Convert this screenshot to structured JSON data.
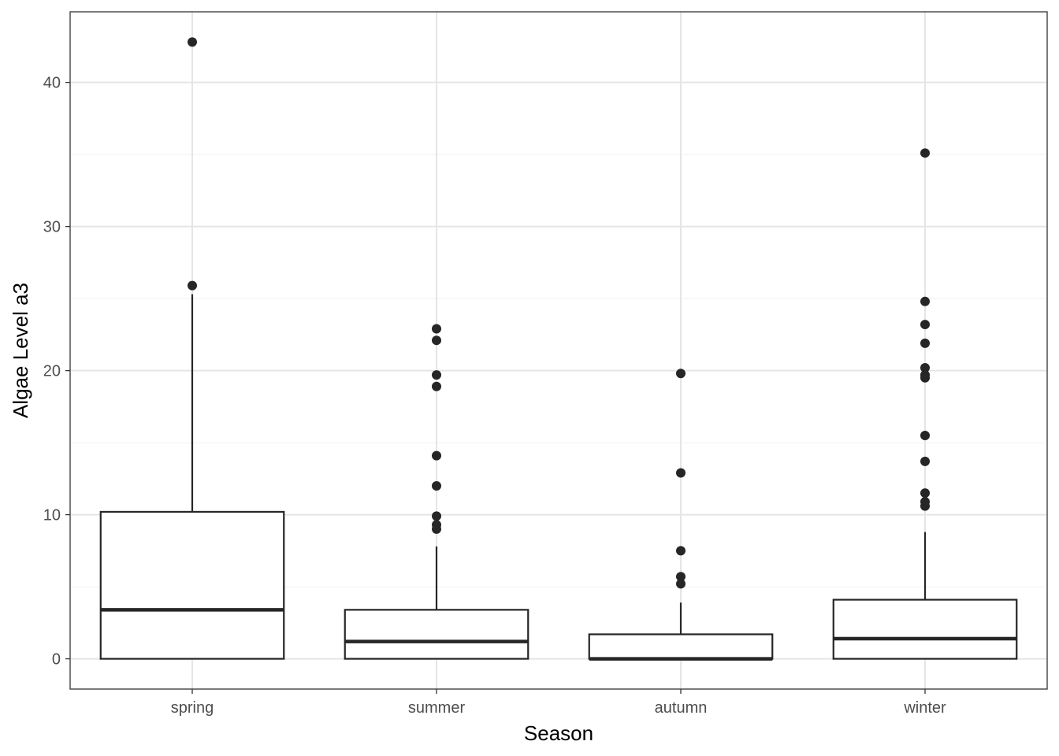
{
  "chart_data": {
    "type": "boxplot",
    "title": "",
    "xlabel": "Season",
    "ylabel": "Algae Level a3",
    "ylim": [
      -2.1,
      44.9
    ],
    "y_ticks": [
      0,
      10,
      20,
      30,
      40
    ],
    "y_minor_ticks": [
      5,
      15,
      25,
      35
    ],
    "grid": true,
    "categories": [
      "spring",
      "summer",
      "autumn",
      "winter"
    ],
    "boxes": [
      {
        "category": "spring",
        "q1": 0,
        "median": 3.4,
        "q3": 10.2,
        "whisker_low": 0,
        "whisker_high": 25.3,
        "outliers": [
          25.9,
          42.8
        ]
      },
      {
        "category": "summer",
        "q1": 0,
        "median": 1.2,
        "q3": 3.4,
        "whisker_low": 0,
        "whisker_high": 7.8,
        "outliers": [
          9.0,
          9.3,
          9.9,
          12.0,
          14.1,
          18.9,
          19.7,
          22.1,
          22.9
        ]
      },
      {
        "category": "autumn",
        "q1": 0,
        "median": 0.0,
        "q3": 1.7,
        "whisker_low": 0,
        "whisker_high": 3.9,
        "outliers": [
          5.2,
          5.7,
          7.5,
          12.9,
          19.8
        ]
      },
      {
        "category": "winter",
        "q1": 0,
        "median": 1.4,
        "q3": 4.1,
        "whisker_low": 0,
        "whisker_high": 8.8,
        "outliers": [
          10.6,
          10.9,
          11.5,
          13.7,
          15.5,
          19.5,
          19.7,
          20.2,
          21.9,
          23.2,
          24.8,
          35.1
        ]
      }
    ]
  }
}
